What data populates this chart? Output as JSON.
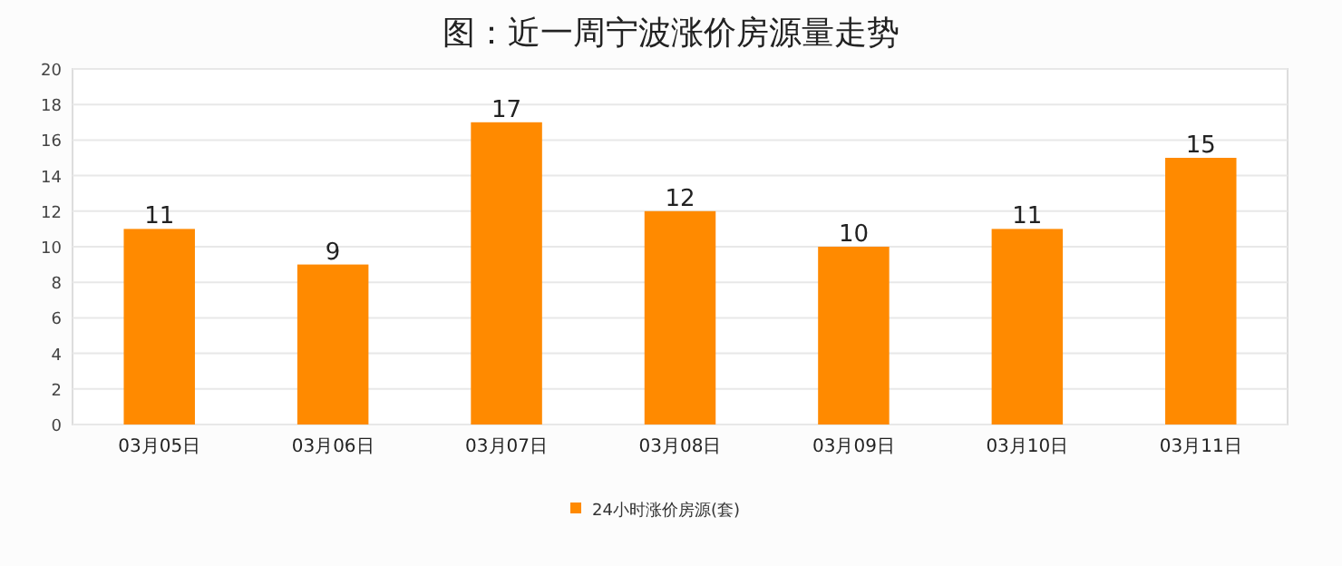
{
  "chart_data": {
    "type": "bar",
    "title": "图：近一周宁波涨价房源量走势",
    "categories": [
      "03月05日",
      "03月06日",
      "03月07日",
      "03月08日",
      "03月09日",
      "03月10日",
      "03月11日"
    ],
    "series": [
      {
        "name": "24小时涨价房源(套)",
        "color": "#ff8a00",
        "values": [
          11,
          9,
          17,
          12,
          10,
          11,
          15
        ]
      }
    ],
    "ylim": [
      0,
      20
    ],
    "yticks": [
      0,
      2,
      4,
      6,
      8,
      10,
      12,
      14,
      16,
      18,
      20
    ],
    "grid": "y",
    "legend": "bottom",
    "data_labels": true
  }
}
